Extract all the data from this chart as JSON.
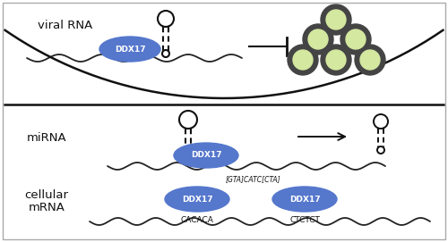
{
  "bg_color": "#ffffff",
  "border_color": "#aaaaaa",
  "ddx17_fill": "#5577cc",
  "ddx17_text": "DDX17",
  "ddx17_text_color": "#ffffff",
  "virus_fill_outer": "#444444",
  "virus_fill_inner": "#d4e8a0",
  "rna_line_color": "#222222",
  "arrow_color": "#222222",
  "text_color": "#111111",
  "label_viral": "viral RNA",
  "label_mirna": "miRNA",
  "label_cellular": "cellular\nmRNA",
  "label_catc": "[GTA]CATC[CTA]",
  "label_cacaca": "CACACA",
  "label_ctctct": "CTCTCT",
  "figsize": [
    5.0,
    2.71
  ],
  "dpi": 100
}
